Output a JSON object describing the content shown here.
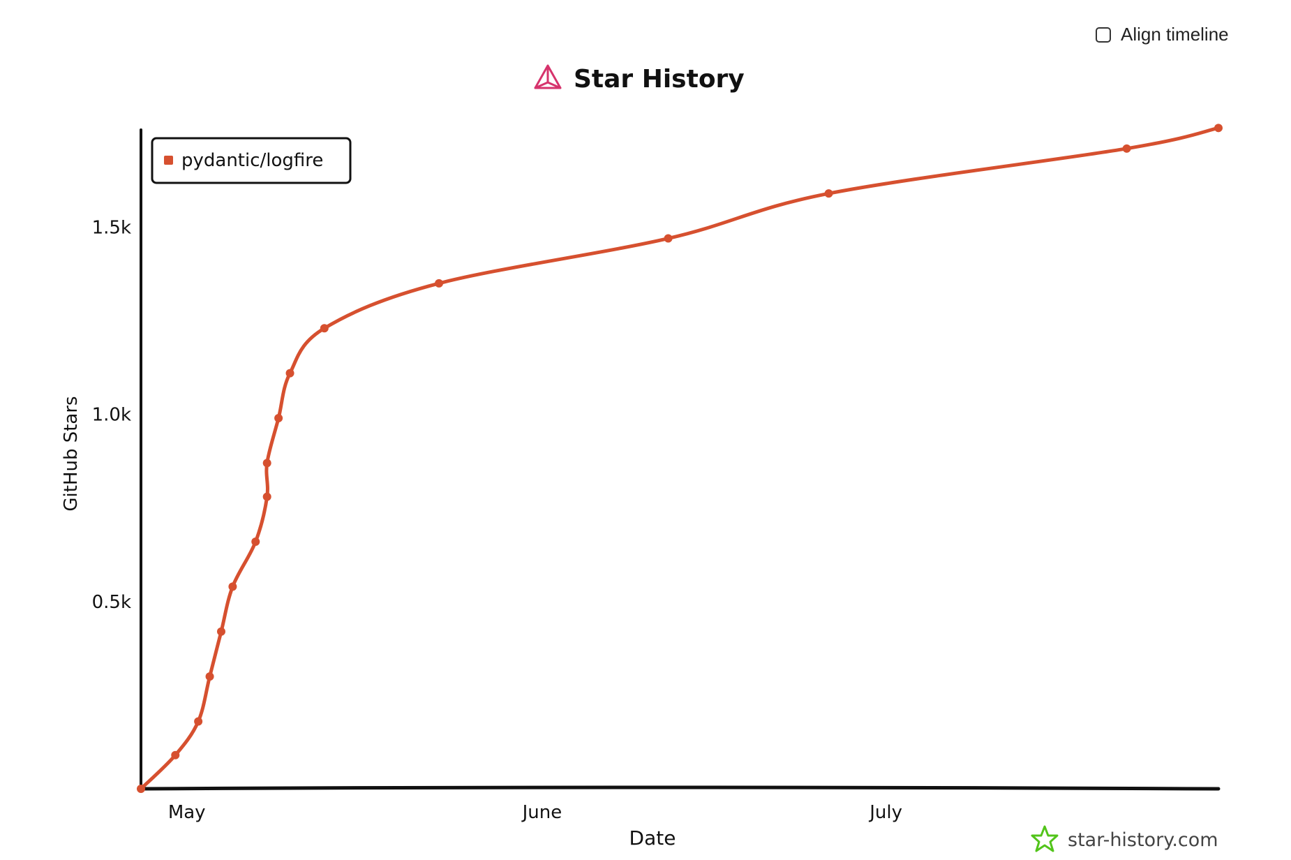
{
  "controls": {
    "align_timeline_label": "Align timeline",
    "align_timeline_checked": false
  },
  "watermark": {
    "text": "star-history.com",
    "icon": "star-icon",
    "color": "#52c41a"
  },
  "colors": {
    "series": "#d6502f",
    "axis": "#111111",
    "title_icon": "#d6336c"
  },
  "chart_data": {
    "type": "line",
    "title": "Star History",
    "title_icon": "pyramid-icon",
    "xlabel": "Date",
    "ylabel": "GitHub Stars",
    "grid": false,
    "legend": "top-left",
    "x_ticks": [
      {
        "label": "May",
        "date": "2024-05-01"
      },
      {
        "label": "June",
        "date": "2024-06-01"
      },
      {
        "label": "July",
        "date": "2024-07-01"
      }
    ],
    "y_ticks": [
      {
        "label": "0.5k",
        "value": 500
      },
      {
        "label": "1.0k",
        "value": 1000
      },
      {
        "label": "1.5k",
        "value": 1500
      }
    ],
    "xlim": [
      "2024-04-27",
      "2024-07-30"
    ],
    "ylim": [
      0,
      1760
    ],
    "series": [
      {
        "name": "pydantic/logfire",
        "color": "#d6502f",
        "points": [
          {
            "date": "2024-04-27",
            "value": 0
          },
          {
            "date": "2024-04-30",
            "value": 90
          },
          {
            "date": "2024-05-02",
            "value": 180
          },
          {
            "date": "2024-05-03",
            "value": 300
          },
          {
            "date": "2024-05-04",
            "value": 420
          },
          {
            "date": "2024-05-05",
            "value": 540
          },
          {
            "date": "2024-05-07",
            "value": 660
          },
          {
            "date": "2024-05-08",
            "value": 780
          },
          {
            "date": "2024-05-08",
            "value": 870
          },
          {
            "date": "2024-05-09",
            "value": 990
          },
          {
            "date": "2024-05-10",
            "value": 1110
          },
          {
            "date": "2024-05-13",
            "value": 1230
          },
          {
            "date": "2024-05-23",
            "value": 1350
          },
          {
            "date": "2024-06-12",
            "value": 1470
          },
          {
            "date": "2024-06-26",
            "value": 1590
          },
          {
            "date": "2024-07-22",
            "value": 1710
          },
          {
            "date": "2024-07-30",
            "value": 1765
          }
        ]
      }
    ]
  }
}
